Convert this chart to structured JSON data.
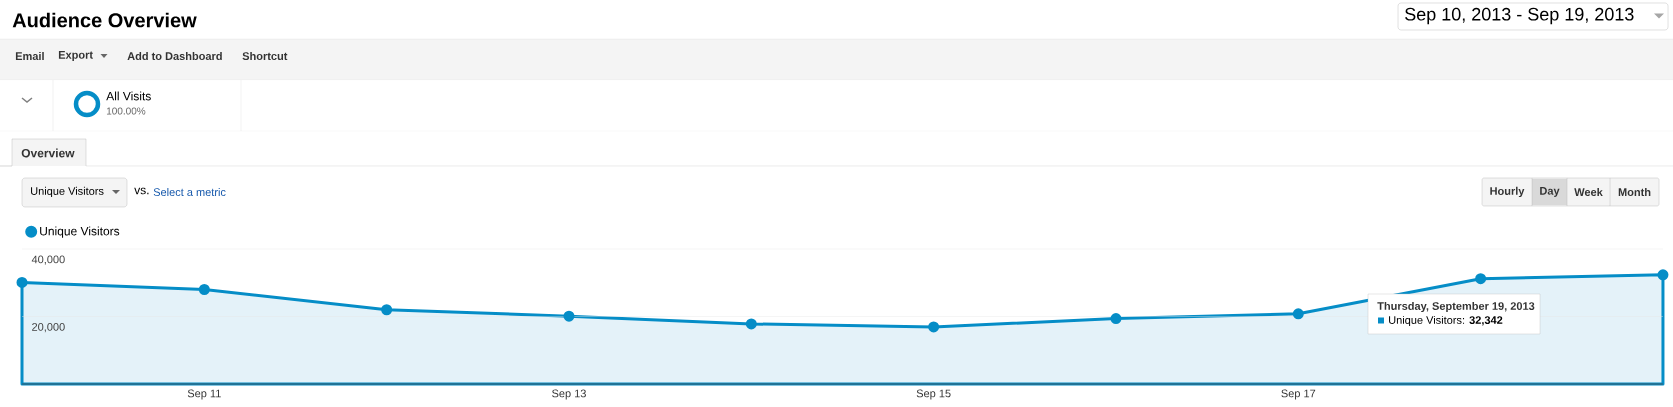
{
  "chart_data": {
    "type": "area",
    "title": "Audience Overview",
    "subtitle": "Sep 10, 2013 - Sep 19, 2013",
    "categories": [
      null,
      "Sep 11",
      null,
      "Sep 13",
      null,
      "Sep 15",
      null,
      "Sep 17",
      null,
      null
    ],
    "series": [
      {
        "name": "Unique Visitors",
        "color": "#058dc7",
        "values": [
          30100,
          28000,
          22000,
          20100,
          17800,
          16900,
          19400,
          20800,
          31200,
          32342
        ]
      }
    ],
    "ylim": [
      0,
      40000
    ],
    "yticks": [
      {
        "value": 20000,
        "label": "20,000"
      },
      {
        "value": 40000,
        "label": "40,000"
      }
    ],
    "grid": "y",
    "legend": "top left",
    "marker": "circle",
    "line_style": "solid",
    "annotations": [
      "Email",
      "Export",
      "Add to Dashboard",
      "Shortcut",
      "All Visits",
      "100.00%",
      "Overview",
      "Unique Visitors",
      "vs.",
      "Select a metric",
      "Hourly",
      "Day",
      "Week",
      "Month",
      "Thursday, September 19, 2013",
      "Unique Visitors: **32,342**"
    ]
  }
}
